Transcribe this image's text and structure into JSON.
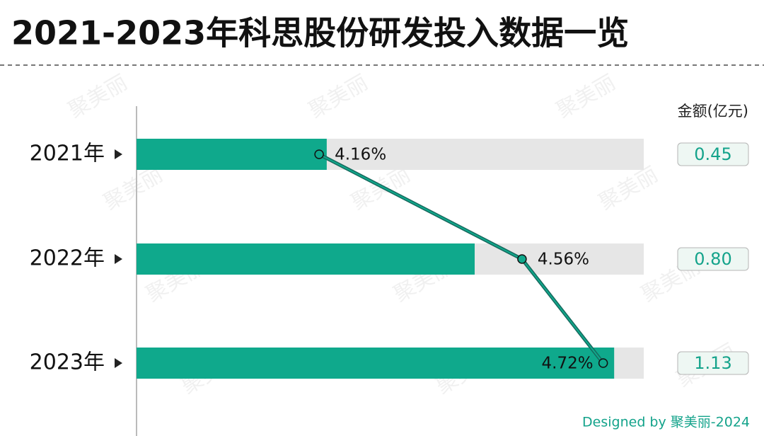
{
  "chart_data": {
    "type": "bar-line",
    "title": "2021-2023年科思股份研发投入数据一览",
    "unit_label": "金额(亿元)",
    "footer": "Designed by 聚美丽-2024",
    "watermark": "聚美丽",
    "categories": [
      "2021年",
      "2022年",
      "2023年"
    ],
    "series": [
      {
        "values": [
          0.45,
          0.8,
          1.13
        ],
        "value_labels": [
          "0.45",
          "0.80",
          "1.13"
        ],
        "color": "#0fa98c"
      },
      {
        "values": [
          4.16,
          4.56,
          4.72
        ],
        "value_labels": [
          "4.16%",
          "4.56%",
          "4.72%"
        ],
        "color": "#17695e",
        "axis": "x2"
      }
    ],
    "xlim": [
      0,
      1.2
    ],
    "x2lim": [
      3.8,
      4.8
    ]
  }
}
